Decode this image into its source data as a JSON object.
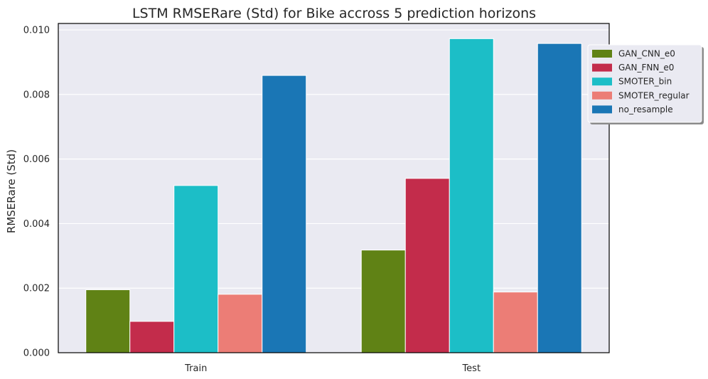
{
  "chart_data": {
    "type": "bar",
    "title": "LSTM RMSERare (Std) for Bike accross 5 prediction horizons",
    "xlabel": "",
    "ylabel": "RMSERare (Std)",
    "categories": [
      "Train",
      "Test"
    ],
    "ylim": [
      0,
      0.0102
    ],
    "yticks": [
      0.0,
      0.002,
      0.004,
      0.006,
      0.008,
      0.01
    ],
    "ytick_labels": [
      "0.000",
      "0.002",
      "0.004",
      "0.006",
      "0.008",
      "0.010"
    ],
    "grid": true,
    "legend_position": "top-right",
    "series": [
      {
        "name": "GAN_CNN_e0",
        "color": "#608215",
        "values": [
          0.00195,
          0.00318
        ]
      },
      {
        "name": "GAN_FNN_e0",
        "color": "#c32c4b",
        "values": [
          0.00097,
          0.0054
        ]
      },
      {
        "name": "SMOTER_bin",
        "color": "#1cbec7",
        "values": [
          0.00518,
          0.00973
        ]
      },
      {
        "name": "SMOTER_regular",
        "color": "#ec7d76",
        "values": [
          0.00181,
          0.00188
        ]
      },
      {
        "name": "no_resample",
        "color": "#1a76b5",
        "values": [
          0.00859,
          0.00958
        ]
      }
    ]
  }
}
